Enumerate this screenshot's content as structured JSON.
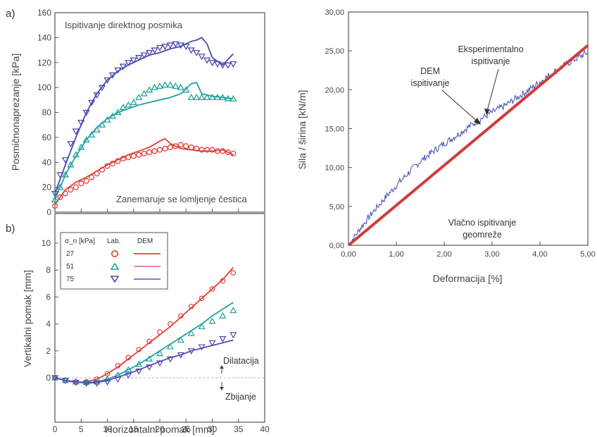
{
  "chart_data": [
    {
      "panel": "a)",
      "type": "line",
      "title": "Ispitivanje direktnog posmika",
      "annotation": "Zanemaruje se lomljenje čestica",
      "xlabel": "",
      "ylabel": "Posmičnonaprezanje  [kPa]",
      "xlim": [
        0,
        40
      ],
      "ylim": [
        0,
        160
      ],
      "yticks": [
        "0",
        "20",
        "40",
        "60",
        "80",
        "100",
        "120",
        "140",
        "160"
      ],
      "colors": [
        "#e0403a",
        "#1fa39a",
        "#4a4ab0"
      ],
      "series": [
        {
          "kind": "Lab.",
          "sigma": "27",
          "marker": "circle",
          "x": [
            0,
            1,
            2,
            3,
            4,
            5,
            6,
            7,
            8,
            9,
            10,
            11,
            12,
            13,
            14,
            15,
            16,
            17,
            18,
            19,
            20,
            21,
            22,
            23,
            24,
            25,
            26,
            27,
            28,
            29,
            30,
            31,
            32,
            33,
            34
          ],
          "y": [
            5,
            12,
            15,
            18,
            20,
            23,
            25,
            28,
            31,
            34,
            37,
            39,
            41,
            43,
            44,
            45,
            46,
            47,
            48,
            49,
            50,
            51,
            52,
            53,
            54,
            53,
            52,
            51,
            50,
            50,
            50,
            49,
            49,
            48,
            47
          ]
        },
        {
          "kind": "DEM",
          "sigma": "27",
          "x": [
            0,
            2,
            4,
            6,
            8,
            10,
            12,
            14,
            16,
            18,
            20,
            21,
            22,
            24,
            26,
            28,
            30,
            32,
            34
          ],
          "y": [
            6,
            18,
            24,
            28,
            33,
            38,
            42,
            46,
            49,
            52,
            57,
            59,
            55,
            51,
            50,
            49,
            49,
            50,
            46
          ]
        },
        {
          "kind": "Lab.",
          "sigma": "51",
          "marker": "triangle-up",
          "x": [
            0,
            1,
            2,
            3,
            4,
            5,
            6,
            7,
            8,
            9,
            10,
            11,
            12,
            13,
            14,
            15,
            16,
            17,
            18,
            19,
            20,
            21,
            22,
            23,
            24,
            25,
            26,
            27,
            28,
            29,
            30,
            31,
            32,
            33,
            34
          ],
          "y": [
            10,
            20,
            30,
            38,
            46,
            52,
            58,
            62,
            66,
            70,
            74,
            77,
            80,
            84,
            86,
            88,
            92,
            95,
            98,
            100,
            101,
            102,
            102,
            101,
            100,
            98,
            92,
            92,
            92,
            92,
            92,
            92,
            92,
            91,
            91
          ]
        },
        {
          "kind": "DEM",
          "sigma": "51",
          "x": [
            0,
            2,
            4,
            6,
            8,
            10,
            12,
            14,
            16,
            18,
            20,
            22,
            24,
            26,
            27,
            28,
            30,
            32,
            34
          ],
          "y": [
            10,
            30,
            45,
            58,
            68,
            75,
            80,
            83,
            86,
            88,
            90,
            92,
            95,
            103,
            104,
            95,
            93,
            92,
            91
          ]
        },
        {
          "kind": "Lab.",
          "sigma": "75",
          "marker": "triangle-down",
          "x": [
            0,
            1,
            2,
            3,
            4,
            5,
            6,
            7,
            8,
            9,
            10,
            11,
            12,
            13,
            14,
            15,
            16,
            17,
            18,
            19,
            20,
            21,
            22,
            23,
            24,
            25,
            26,
            27,
            28,
            29,
            30,
            31,
            32,
            33,
            34
          ],
          "y": [
            15,
            30,
            42,
            55,
            65,
            72,
            80,
            88,
            94,
            100,
            106,
            110,
            114,
            117,
            120,
            122,
            124,
            126,
            128,
            130,
            132,
            133,
            134,
            135,
            134,
            133,
            130,
            128,
            125,
            122,
            120,
            119,
            118,
            118,
            119
          ]
        },
        {
          "kind": "DEM",
          "sigma": "75",
          "x": [
            0,
            2,
            4,
            6,
            8,
            10,
            12,
            14,
            16,
            18,
            20,
            22,
            24,
            26,
            27,
            28,
            29,
            30,
            32,
            34
          ],
          "y": [
            15,
            38,
            60,
            80,
            95,
            106,
            113,
            118,
            122,
            126,
            128,
            131,
            133,
            137,
            138,
            140,
            135,
            124,
            118,
            127
          ]
        }
      ]
    },
    {
      "panel": "b)",
      "type": "line",
      "xlabel": "Horizontalni pomak [mm]",
      "ylabel": "Vertikalni pomak [mm]",
      "xlim": [
        0,
        40
      ],
      "ylim": [
        -3,
        11.5
      ],
      "xticks": [
        "0",
        "5",
        "10",
        "15",
        "20",
        "25",
        "30",
        "35",
        "40"
      ],
      "yticks": [
        "0",
        "2",
        "4",
        "6",
        "8",
        "10"
      ],
      "annotations": [
        "Dilatacija",
        "Zbijanje"
      ],
      "legend": {
        "header": [
          "σ_n [kPa]",
          "Lab.",
          "DEM"
        ],
        "rows": [
          "27",
          "51",
          "75"
        ]
      },
      "colors": [
        "#e0403a",
        "#1fa39a",
        "#4a4ab0"
      ],
      "series": [
        {
          "kind": "Lab.",
          "sigma": "27",
          "marker": "circle",
          "x": [
            0,
            2,
            4,
            6,
            8,
            10,
            12,
            14,
            16,
            18,
            20,
            22,
            24,
            26,
            28,
            30,
            32,
            34
          ],
          "y": [
            0,
            -0.2,
            -0.3,
            -0.3,
            -0.1,
            0.3,
            0.9,
            1.5,
            2.1,
            2.7,
            3.4,
            4.0,
            4.6,
            5.3,
            5.9,
            6.6,
            7.2,
            7.8
          ]
        },
        {
          "kind": "DEM",
          "sigma": "27",
          "x": [
            0,
            2,
            4,
            6,
            8,
            10,
            12,
            14,
            16,
            18,
            20,
            22,
            24,
            26,
            28,
            30,
            32,
            34
          ],
          "y": [
            0,
            -0.2,
            -0.35,
            -0.3,
            -0.1,
            0.3,
            0.8,
            1.4,
            2.0,
            2.6,
            3.2,
            3.8,
            4.5,
            5.2,
            5.9,
            6.6,
            7.3,
            8.2
          ]
        },
        {
          "kind": "Lab.",
          "sigma": "51",
          "marker": "triangle-up",
          "x": [
            0,
            2,
            4,
            6,
            8,
            10,
            12,
            14,
            16,
            18,
            20,
            22,
            24,
            26,
            28,
            30,
            32,
            34
          ],
          "y": [
            0,
            -0.2,
            -0.3,
            -0.35,
            -0.3,
            -0.1,
            0.2,
            0.6,
            1.0,
            1.4,
            1.8,
            2.3,
            2.8,
            3.3,
            3.8,
            4.2,
            4.6,
            5.0
          ]
        },
        {
          "kind": "DEM",
          "sigma": "51",
          "x": [
            0,
            2,
            4,
            6,
            8,
            10,
            12,
            14,
            16,
            18,
            20,
            22,
            24,
            26,
            28,
            30,
            32,
            34
          ],
          "y": [
            0,
            -0.2,
            -0.3,
            -0.35,
            -0.3,
            -0.1,
            0.2,
            0.6,
            1.0,
            1.5,
            2.0,
            2.5,
            3.0,
            3.5,
            4.0,
            4.6,
            5.1,
            5.6
          ]
        },
        {
          "kind": "Lab.",
          "sigma": "75",
          "marker": "triangle-down",
          "x": [
            0,
            2,
            4,
            6,
            8,
            10,
            12,
            14,
            16,
            18,
            20,
            22,
            24,
            26,
            28,
            30,
            32,
            34
          ],
          "y": [
            0,
            -0.2,
            -0.35,
            -0.4,
            -0.4,
            -0.3,
            -0.1,
            0.2,
            0.5,
            0.8,
            1.1,
            1.4,
            1.7,
            2.0,
            2.3,
            2.6,
            2.9,
            3.2
          ]
        },
        {
          "kind": "DEM",
          "sigma": "75",
          "x": [
            0,
            2,
            4,
            6,
            8,
            10,
            12,
            14,
            16,
            18,
            20,
            22,
            24,
            26,
            28,
            30,
            32,
            34
          ],
          "y": [
            0,
            -0.2,
            -0.3,
            -0.4,
            -0.35,
            -0.2,
            0.05,
            0.3,
            0.6,
            0.9,
            1.2,
            1.5,
            1.7,
            2.0,
            2.2,
            2.4,
            2.6,
            2.8
          ]
        }
      ]
    },
    {
      "type": "line",
      "xlabel": "Deformacija [%]",
      "ylabel": "Sila / širina  [kN/m]",
      "xlim": [
        0,
        5
      ],
      "ylim": [
        0,
        30
      ],
      "xticks": [
        "0,00",
        "1,00",
        "2,00",
        "3,00",
        "4,00",
        "5,00"
      ],
      "yticks": [
        "0,00",
        "5,00",
        "10,00",
        "15,00",
        "20,00",
        "25,00",
        "30,00"
      ],
      "annotations": [
        "Eksperimentalno ispitivanje",
        "DEM ispitivanje",
        "Vlačno ispitivanje geomreže"
      ],
      "colors": [
        "#d23b3b",
        "#4a5ab8"
      ],
      "series": [
        {
          "kind": "DEM",
          "x": [
            0,
            5
          ],
          "y": [
            0,
            25.7
          ]
        },
        {
          "kind": "Eksperimentalno",
          "x": [
            0,
            0.25,
            0.5,
            0.75,
            1.0,
            1.25,
            1.5,
            1.75,
            2.0,
            2.25,
            2.5,
            2.75,
            3.0,
            3.25,
            3.5,
            3.75,
            4.0,
            4.25,
            4.5,
            4.75,
            5.0
          ],
          "y": [
            0,
            2.2,
            4.2,
            6.0,
            7.7,
            9.3,
            10.8,
            12.0,
            13.1,
            14.1,
            15.2,
            16.2,
            17.1,
            17.9,
            18.9,
            19.9,
            21.0,
            22.1,
            23.1,
            24.0,
            24.8
          ]
        }
      ]
    }
  ]
}
